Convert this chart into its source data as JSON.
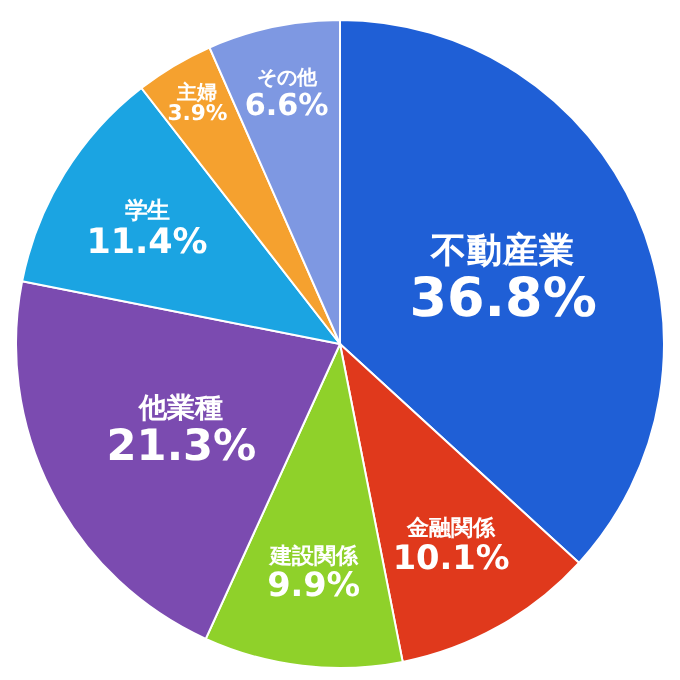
{
  "chart_data": {
    "type": "pie",
    "categories": [
      "不動産業",
      "金融関係",
      "建設関係",
      "他業種",
      "学生",
      "主婦",
      "その他"
    ],
    "values": [
      36.8,
      10.1,
      9.9,
      21.3,
      11.4,
      3.9,
      6.6
    ],
    "value_labels": [
      "36.8%",
      "10.1%",
      "9.9%",
      "21.3%",
      "11.4%",
      "3.9%",
      "6.6%"
    ],
    "colors": [
      "#1f5fd6",
      "#e0391c",
      "#8fd12a",
      "#7b4bb0",
      "#1ba4e2",
      "#f5a12f",
      "#7e98e2"
    ],
    "legend": false
  }
}
